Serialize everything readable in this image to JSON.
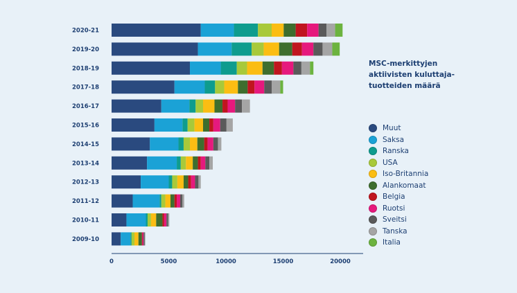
{
  "chart_data": {
    "type": "bar",
    "orientation": "horizontal",
    "stacked": true,
    "title_lines": [
      "MSC-merkittyjen",
      "aktiivisten kuluttaja-",
      "tuotteiden määrä"
    ],
    "xlabel": "",
    "ylabel": "",
    "xlim": [
      0,
      22000
    ],
    "xticks": [
      0,
      5000,
      10000,
      15000,
      20000
    ],
    "xtick_labels": [
      "0",
      "5000",
      "10000",
      "15000",
      "20000"
    ],
    "grid": false,
    "legend_position": "right",
    "categories": [
      "2020-21",
      "2019-20",
      "2018-19",
      "2017-18",
      "2016-17",
      "2015-16",
      "2014-15",
      "2013-14",
      "2012-13",
      "2011-12",
      "2010-11",
      "2009-10"
    ],
    "series": [
      {
        "name": "Muut",
        "color": "#2a4a7f",
        "values": [
          7800,
          7550,
          6850,
          5500,
          4350,
          3750,
          3350,
          3100,
          2550,
          1850,
          1300,
          800
        ]
      },
      {
        "name": "Saksa",
        "color": "#1ba2d6",
        "values": [
          2900,
          2950,
          2700,
          2650,
          2450,
          2450,
          2500,
          2600,
          2450,
          2350,
          1700,
          850
        ]
      },
      {
        "name": "Ranska",
        "color": "#0e9c8e",
        "values": [
          2100,
          1750,
          1400,
          900,
          550,
          450,
          450,
          350,
          300,
          150,
          150,
          100
        ]
      },
      {
        "name": "USA",
        "color": "#a8c93a",
        "values": [
          1200,
          1050,
          900,
          800,
          650,
          600,
          550,
          450,
          450,
          350,
          300,
          250
        ]
      },
      {
        "name": "Iso-Britannia",
        "color": "#fbbd13",
        "values": [
          1050,
          1350,
          1350,
          1200,
          1000,
          750,
          650,
          600,
          550,
          450,
          450,
          350
        ]
      },
      {
        "name": "Alankomaat",
        "color": "#3e6e2e",
        "values": [
          1050,
          1150,
          1000,
          850,
          700,
          550,
          600,
          450,
          400,
          350,
          550,
          300
        ]
      },
      {
        "name": "Belgia",
        "color": "#c0151f",
        "values": [
          1000,
          850,
          700,
          600,
          450,
          350,
          300,
          250,
          250,
          200,
          150,
          50
        ]
      },
      {
        "name": "Ruotsi",
        "color": "#e6197d",
        "values": [
          1000,
          1000,
          1000,
          850,
          650,
          600,
          500,
          400,
          350,
          300,
          200,
          100
        ]
      },
      {
        "name": "Sveitsi",
        "color": "#5a5a5a",
        "values": [
          700,
          800,
          700,
          650,
          600,
          550,
          400,
          350,
          300,
          200,
          150,
          100
        ]
      },
      {
        "name": "Tanska",
        "color": "#a5a5a5",
        "values": [
          750,
          850,
          750,
          750,
          700,
          550,
          300,
          300,
          200,
          150,
          100,
          50
        ]
      },
      {
        "name": "Italia",
        "color": "#6cb33f",
        "values": [
          650,
          650,
          300,
          250,
          0,
          0,
          0,
          0,
          0,
          0,
          0,
          0
        ]
      }
    ]
  }
}
